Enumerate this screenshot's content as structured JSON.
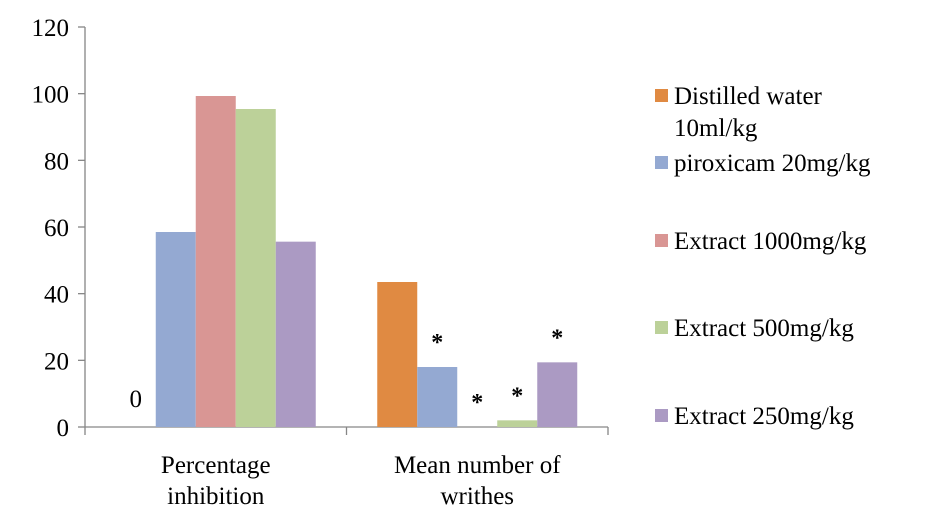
{
  "chart_data": {
    "type": "bar",
    "categories": [
      [
        "Percentage",
        "inhibition"
      ],
      [
        "Mean number of",
        "writhes"
      ]
    ],
    "series": [
      {
        "name": [
          "Distilled water",
          "10ml/kg"
        ],
        "color": "#e08a42",
        "values": [
          0,
          43.5
        ]
      },
      {
        "name": [
          "piroxicam 20mg/kg"
        ],
        "color": "#94a9d2",
        "values": [
          58.5,
          18
        ]
      },
      {
        "name": [
          "Extract 1000mg/kg"
        ],
        "color": "#d99694",
        "values": [
          99.3,
          0
        ]
      },
      {
        "name": [
          "Extract 500mg/kg"
        ],
        "color": "#bcd199",
        "values": [
          95.4,
          2
        ]
      },
      {
        "name": [
          "Extract 250mg/kg"
        ],
        "color": "#ab9ac3",
        "values": [
          55.6,
          19.4
        ]
      }
    ],
    "ylim": [
      0,
      120
    ],
    "yticks": [
      0,
      20,
      40,
      60,
      80,
      100,
      120
    ],
    "legend_position": "right",
    "grid": false,
    "data_labels": [
      {
        "series": 0,
        "category": 0,
        "text": "0"
      }
    ],
    "annotations": [
      {
        "series": 1,
        "category": 1,
        "text": "*"
      },
      {
        "series": 2,
        "category": 1,
        "text": "*"
      },
      {
        "series": 3,
        "category": 1,
        "text": "*"
      },
      {
        "series": 4,
        "category": 1,
        "text": "*"
      }
    ]
  }
}
